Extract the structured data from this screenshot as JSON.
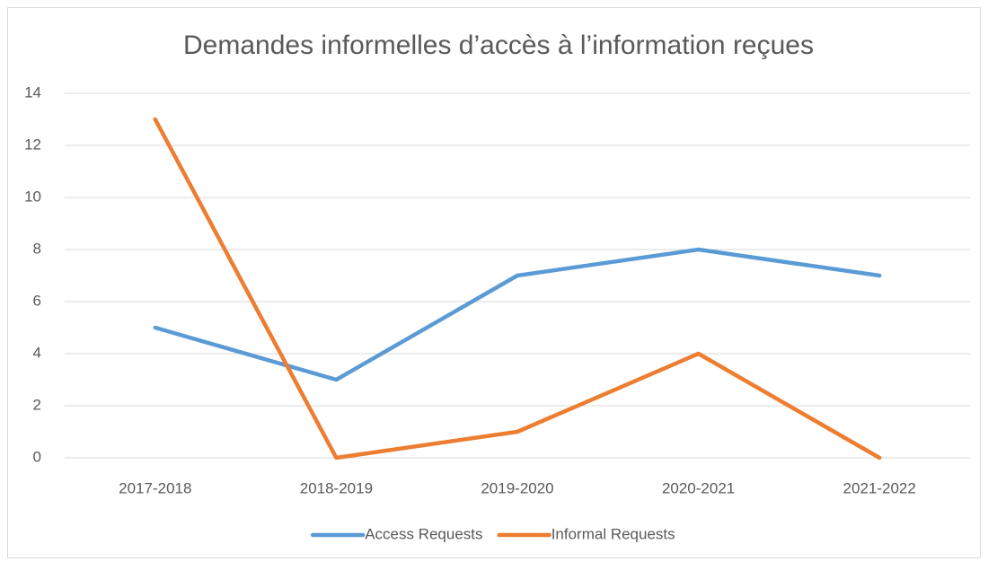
{
  "chart_data": {
    "type": "line",
    "title": "Demandes informelles d’accès à l’information reçues",
    "categories": [
      "2017-2018",
      "2018-2019",
      "2019-2020",
      "2020-2021",
      "2021-2022"
    ],
    "series": [
      {
        "name": "Access Requests",
        "color": "#5b9bd5",
        "values": [
          5,
          3,
          7,
          8,
          7
        ]
      },
      {
        "name": "Informal Requests",
        "color": "#ed7d31",
        "values": [
          13,
          0,
          1,
          4,
          0
        ]
      }
    ],
    "ylim": [
      0,
      14
    ],
    "yticks": [
      0,
      2,
      4,
      6,
      8,
      10,
      12,
      14
    ],
    "grid": true,
    "legend": "bottom"
  }
}
